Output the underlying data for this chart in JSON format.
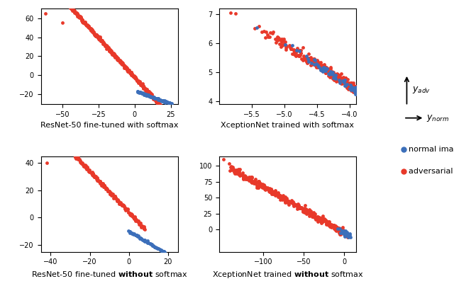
{
  "red_color": "#e8392a",
  "blue_color": "#3c6fba",
  "marker_size": 4,
  "plots": [
    {
      "id": 1,
      "title_plain": "ResNet-50 fine-tuned with softmax",
      "title_bold": null,
      "xlim": [
        -65,
        30
      ],
      "ylim": [
        -30,
        70
      ],
      "xticks": [
        -50,
        -25,
        0,
        25
      ],
      "yticks": [
        -20,
        0,
        20,
        40,
        60
      ]
    },
    {
      "id": 2,
      "title_plain": "XceptionNet trained with softmax",
      "title_bold": null,
      "xlim": [
        -6.0,
        -3.9
      ],
      "ylim": [
        3.9,
        7.2
      ],
      "xticks": [
        -5.5,
        -5.0,
        -4.5,
        -4.0
      ],
      "yticks": [
        4,
        5,
        6,
        7
      ]
    },
    {
      "id": 3,
      "title_pre": "ResNet-50 fine-tuned ",
      "title_bold": "without",
      "title_post": " softmax",
      "xlim": [
        -45,
        25
      ],
      "ylim": [
        -25,
        45
      ],
      "xticks": [
        -40,
        -20,
        0,
        20
      ],
      "yticks": [
        -20,
        0,
        20,
        40
      ]
    },
    {
      "id": 4,
      "title_pre": "XceptionNet trained ",
      "title_bold": "without",
      "title_post": " softmax",
      "xlim": [
        -155,
        15
      ],
      "ylim": [
        -35,
        115
      ],
      "xticks": [
        -100,
        -50,
        0
      ],
      "yticks": [
        0,
        25,
        50,
        75,
        100
      ]
    }
  ]
}
